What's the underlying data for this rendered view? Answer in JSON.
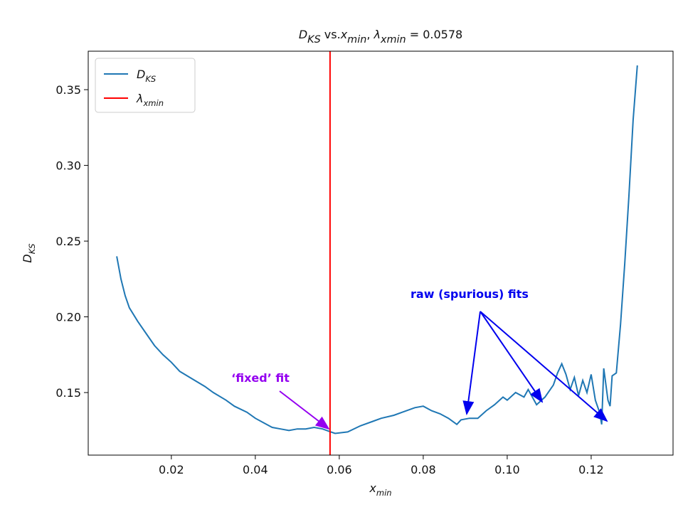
{
  "chart_data": {
    "type": "line",
    "title": [
      {
        "text": "D",
        "italic": true
      },
      {
        "text": "KS",
        "sub": true,
        "italic": true
      },
      {
        "text": " vs."
      },
      {
        "text": "x",
        "italic": true
      },
      {
        "text": "min",
        "sub": true,
        "italic": true
      },
      {
        "text": ", "
      },
      {
        "text": "λ",
        "italic": true
      },
      {
        "text": "xmin",
        "sub": true,
        "italic": true
      },
      {
        "text": " = 0.0578"
      }
    ],
    "xlabel": [
      {
        "text": "x",
        "italic": true
      },
      {
        "text": "min",
        "sub": true,
        "italic": true
      }
    ],
    "ylabel": [
      {
        "text": "D",
        "italic": true
      },
      {
        "text": "KS",
        "sub": true,
        "italic": true
      }
    ],
    "xlim": [
      0.0002,
      0.1395
    ],
    "ylim": [
      0.1087,
      0.3754
    ],
    "xticks": [
      0.02,
      0.04,
      0.06,
      0.08,
      {
        "value": 0.1,
        "label": "0.10"
      },
      0.12
    ],
    "yticks": [
      0.15,
      {
        "value": 0.2,
        "label": "0.20"
      },
      0.25,
      {
        "value": 0.3,
        "label": "0.30"
      },
      0.35
    ],
    "series": [
      {
        "name": [
          {
            "text": "D",
            "italic": true
          },
          {
            "text": "KS",
            "sub": true,
            "italic": true
          }
        ],
        "color": "#1f77b4",
        "x": [
          0.007,
          0.008,
          0.009,
          0.01,
          0.012,
          0.014,
          0.016,
          0.018,
          0.02,
          0.022,
          0.025,
          0.028,
          0.03,
          0.033,
          0.035,
          0.038,
          0.04,
          0.042,
          0.044,
          0.046,
          0.048,
          0.05,
          0.052,
          0.054,
          0.056,
          0.058,
          0.059,
          0.062,
          0.065,
          0.068,
          0.07,
          0.073,
          0.075,
          0.078,
          0.08,
          0.082,
          0.084,
          0.086,
          0.088,
          0.089,
          0.091,
          0.093,
          0.095,
          0.097,
          0.099,
          0.1,
          0.102,
          0.104,
          0.105,
          0.107,
          0.109,
          0.111,
          0.112,
          0.113,
          0.114,
          0.115,
          0.116,
          0.117,
          0.118,
          0.119,
          0.12,
          0.121,
          0.122,
          0.1225,
          0.123,
          0.124,
          0.1245,
          0.125,
          0.126,
          0.127,
          0.128,
          0.129,
          0.13,
          0.131
        ],
        "values": [
          0.24,
          0.225,
          0.214,
          0.206,
          0.197,
          0.189,
          0.181,
          0.175,
          0.17,
          0.164,
          0.159,
          0.154,
          0.15,
          0.145,
          0.141,
          0.137,
          0.133,
          0.13,
          0.127,
          0.126,
          0.125,
          0.126,
          0.126,
          0.127,
          0.126,
          0.124,
          0.123,
          0.124,
          0.128,
          0.131,
          0.133,
          0.135,
          0.137,
          0.14,
          0.141,
          0.138,
          0.136,
          0.133,
          0.129,
          0.132,
          0.133,
          0.133,
          0.138,
          0.142,
          0.147,
          0.145,
          0.15,
          0.147,
          0.152,
          0.142,
          0.147,
          0.155,
          0.163,
          0.169,
          0.162,
          0.152,
          0.16,
          0.148,
          0.158,
          0.15,
          0.162,
          0.145,
          0.137,
          0.129,
          0.166,
          0.145,
          0.141,
          0.161,
          0.163,
          0.195,
          0.235,
          0.28,
          0.33,
          0.366
        ]
      }
    ],
    "vline": {
      "name": [
        {
          "text": "λ",
          "italic": true
        },
        {
          "text": "xmin",
          "sub": true,
          "italic": true
        }
      ],
      "x": 0.0578,
      "color": "#ff0000"
    },
    "legend": "upper left",
    "annotations": [
      {
        "text": "raw (spurious) fits",
        "color": "#0000ee"
      },
      {
        "text": "‘fixed’ fit",
        "color": "#9400f0"
      }
    ]
  }
}
